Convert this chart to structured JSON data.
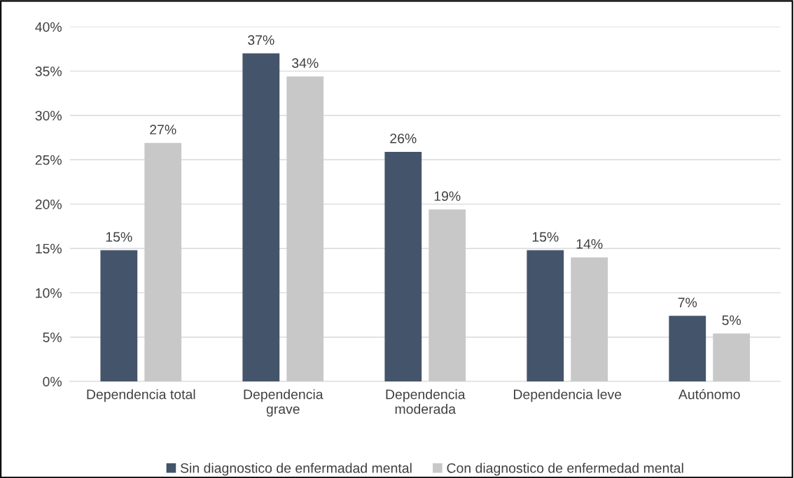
{
  "chart_data": {
    "type": "bar",
    "categories": [
      "Dependencia total",
      "Dependencia\ngrave",
      "Dependencia\nmoderada",
      "Dependencia leve",
      "Autónomo"
    ],
    "series": [
      {
        "name": "Sin diagnostico de enfermadad mental",
        "color": "#44546a",
        "values": [
          14.8,
          37.0,
          25.9,
          14.8,
          7.4
        ],
        "value_labels": [
          "15%",
          "37%",
          "26%",
          "15%",
          "7%"
        ]
      },
      {
        "name": "Con diagnostico de enfermedad mental",
        "color": "#c8c8c8",
        "values": [
          26.9,
          34.4,
          19.4,
          14.0,
          5.4
        ],
        "value_labels": [
          "27%",
          "34%",
          "19%",
          "14%",
          "5%"
        ]
      }
    ],
    "ylim": [
      0,
      40
    ],
    "yticks": [
      {
        "value": 0,
        "label": "0%"
      },
      {
        "value": 5,
        "label": "5%"
      },
      {
        "value": 10,
        "label": "10%"
      },
      {
        "value": 15,
        "label": "15%"
      },
      {
        "value": 20,
        "label": "20%"
      },
      {
        "value": 25,
        "label": "25%"
      },
      {
        "value": 30,
        "label": "30%"
      },
      {
        "value": 35,
        "label": "35%"
      },
      {
        "value": 40,
        "label": "40%"
      }
    ],
    "grid": "y",
    "legend": "bottom"
  }
}
